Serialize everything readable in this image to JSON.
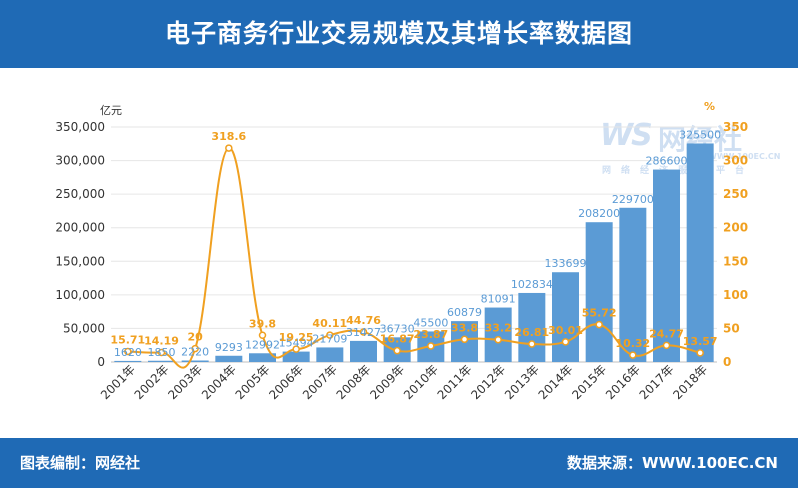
{
  "header": {
    "title": "电子商务行业交易规模及其增长率数据图"
  },
  "footer": {
    "left": "图表编制：网经社",
    "right": "数据来源：WWW.100EC.CN"
  },
  "watermark": {
    "logo": "WS",
    "name": "网经社",
    "url": "WWW.100EC.CN",
    "sub": "网络经济服务平台"
  },
  "colors": {
    "bar": "#5b9bd5",
    "line": "#f0a020",
    "header": "#1f6ab5",
    "bar_label": "#5b9bd5",
    "line_label": "#f0a020"
  },
  "chart_data": {
    "type": "bar",
    "categories": [
      "2001年",
      "2002年",
      "2003年",
      "2004年",
      "2005年",
      "2006年",
      "2007年",
      "2008年",
      "2009年",
      "2010年",
      "2011年",
      "2012年",
      "2013年",
      "2014年",
      "2015年",
      "2016年",
      "2017年",
      "2018年"
    ],
    "series": [
      {
        "values": [
          1620,
          1850,
          2220,
          9293,
          12992,
          15494,
          21709,
          31427,
          36730,
          45500,
          60879,
          81091,
          102834,
          133699,
          208200,
          229700,
          286600,
          325500
        ]
      },
      {
        "values": [
          15.71,
          14.19,
          20,
          318.6,
          39.8,
          19.25,
          40.11,
          44.76,
          16.87,
          23.87,
          33.8,
          33.2,
          26.81,
          30.01,
          55.72,
          10.32,
          24.77,
          13.57
        ]
      }
    ],
    "y_left": {
      "label": "亿元",
      "min": 0,
      "max": 350000,
      "ticks": [
        "0",
        "50,000",
        "100,000",
        "150,000",
        "200,000",
        "250,000",
        "300,000",
        "350,000"
      ]
    },
    "y_right": {
      "label": "%",
      "min": 0,
      "max": 350,
      "ticks": [
        "0",
        "50",
        "100",
        "150",
        "200",
        "250",
        "300",
        "350"
      ]
    },
    "grid": true
  }
}
